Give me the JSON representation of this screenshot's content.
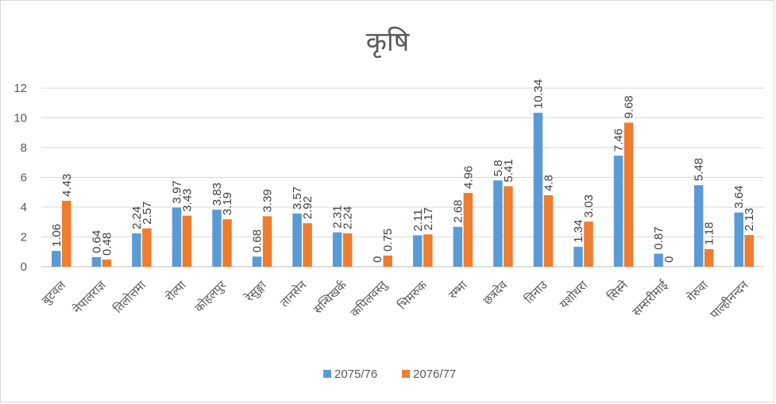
{
  "chart_data": {
    "type": "bar",
    "title": "कृषि",
    "categories": [
      "बुटवल",
      "नेपालराज्ञ",
      "तिलोत्तमा",
      "रोल्पा",
      "कोहलपुर",
      "रेसुङ्गा",
      "तानसेन",
      "सन्धिखर्क",
      "कपिलवस्तु",
      "भिमरुक",
      "रम्भा",
      "छत्रदेव",
      "तिनाउ",
      "यशोधरा",
      "सिस्ने",
      "सम्सरीमाई",
      "गेरुवा",
      "पाल्हीनन्दन"
    ],
    "series": [
      {
        "name": "2075/76",
        "color": "#5b9bd5",
        "values": [
          1.06,
          0.64,
          2.24,
          3.97,
          3.83,
          0.68,
          3.57,
          2.31,
          0,
          2.11,
          2.68,
          5.8,
          10.34,
          1.34,
          7.46,
          0.87,
          5.48,
          3.64
        ]
      },
      {
        "name": "2076/77",
        "color": "#ed7d31",
        "values": [
          4.43,
          0.48,
          2.57,
          3.43,
          3.19,
          3.39,
          2.92,
          2.24,
          0.75,
          2.17,
          4.96,
          5.41,
          4.8,
          3.03,
          9.68,
          0,
          1.18,
          2.13
        ]
      }
    ],
    "yticks": [
      0,
      2,
      4,
      6,
      8,
      10,
      12
    ],
    "ylim": [
      0,
      12
    ],
    "grid": true,
    "legend_position": "bottom"
  }
}
